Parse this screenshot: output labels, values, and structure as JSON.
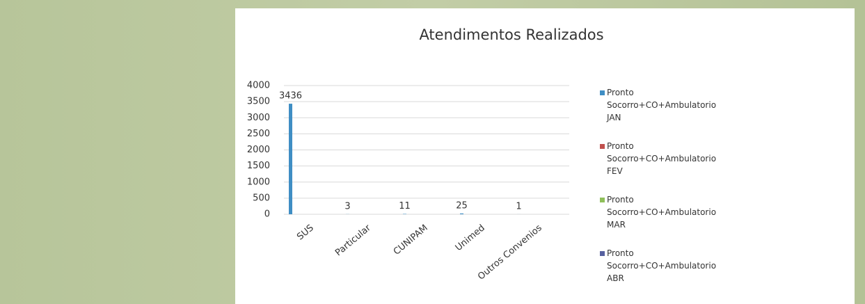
{
  "chart_data": {
    "type": "bar",
    "title": "Atendimentos Realizados",
    "categories": [
      "SUS",
      "Particular",
      "CUNIPAM",
      "Unimed",
      "Outros Convenios"
    ],
    "series": [
      {
        "name": "Pronto Socorro+CO+Ambulatorio JAN",
        "color": "#3f8ec4",
        "values": [
          3436,
          3,
          11,
          25,
          1
        ]
      },
      {
        "name": "Pronto Socorro+CO+Ambulatorio FEV",
        "color": "#c0504d",
        "values": [
          null,
          null,
          null,
          null,
          null
        ]
      },
      {
        "name": "Pronto Socorro+CO+Ambulatorio MAR",
        "color": "#8fbf5a",
        "values": [
          null,
          null,
          null,
          null,
          null
        ]
      },
      {
        "name": "Pronto Socorro+CO+Ambulatorio ABR",
        "color": "#56609f",
        "values": [
          null,
          null,
          null,
          null,
          null
        ]
      }
    ],
    "ylim": [
      0,
      4000
    ],
    "yticks": [
      0,
      500,
      1000,
      1500,
      2000,
      2500,
      3000,
      3500,
      4000
    ],
    "grid": true,
    "legend": "right",
    "data_labels": true
  }
}
